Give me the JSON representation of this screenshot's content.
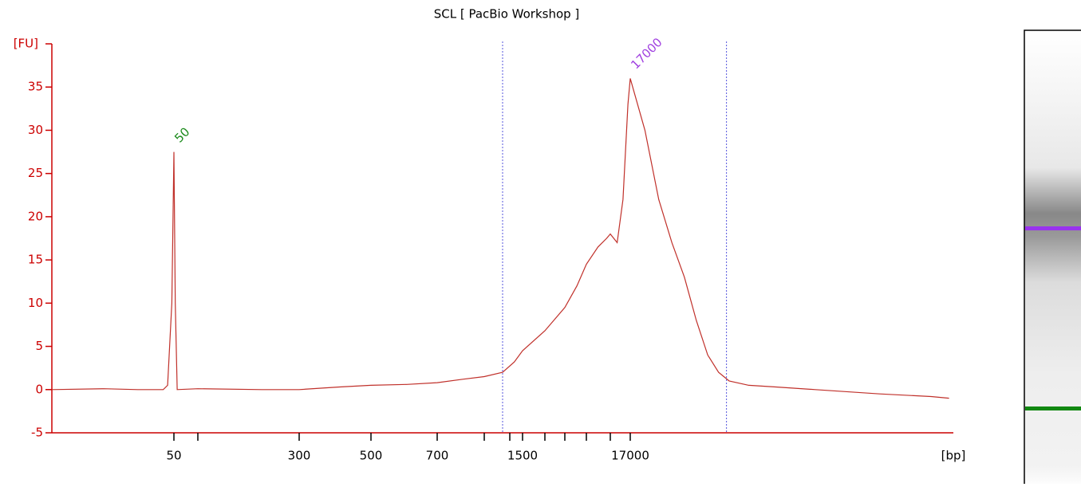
{
  "chart_data": {
    "type": "line",
    "title": "SCL  [ PacBio Workshop ]",
    "y_label": "[FU]",
    "x_label": "[bp]",
    "x": [
      15,
      25,
      35,
      45,
      47,
      49,
      50,
      52,
      55,
      100,
      200,
      300,
      400,
      500,
      600,
      700,
      850,
      1000,
      1140,
      1300,
      1500,
      2000,
      3000,
      4000,
      5000,
      7000,
      9000,
      10000,
      12000,
      14000,
      16000,
      17000,
      18000,
      19000,
      20000,
      21000,
      22000,
      23000,
      24000,
      25000,
      27000,
      30000,
      35000,
      45000,
      55000,
      59000
    ],
    "series": [
      {
        "name": "SCL",
        "color": "#c0302a",
        "values": [
          0,
          0.1,
          0,
          0,
          0.5,
          10,
          27.5,
          10,
          0,
          0.1,
          0,
          0,
          0.3,
          0.5,
          0.6,
          0.8,
          1.2,
          1.5,
          2,
          3.2,
          4.5,
          6.8,
          9.5,
          12,
          14.5,
          16.5,
          17.5,
          18,
          17,
          22,
          33,
          36,
          30,
          22,
          17,
          13,
          8,
          4,
          2,
          1,
          0.5,
          0.3,
          0,
          -0.5,
          -0.8,
          -1
        ]
      }
    ],
    "annotations": [
      {
        "text": "50",
        "x": 50,
        "y": 27.5,
        "color": "#1a8a1a"
      },
      {
        "text": "17000",
        "x": 17000,
        "y": 36,
        "color": "#a040e0"
      }
    ],
    "region_bounds": [
      1140,
      24750
    ],
    "xlim": [
      15,
      60000
    ],
    "xticks": [
      50,
      {
        "value": 100,
        "label": null
      },
      300,
      500,
      700,
      {
        "value": 1000,
        "label": null
      },
      {
        "value": 1200,
        "label": null
      },
      1500,
      {
        "value": 2000,
        "label": null
      },
      {
        "value": 3000,
        "label": null
      },
      {
        "value": 5000,
        "label": null
      },
      {
        "value": 10000,
        "label": null
      },
      17000
    ],
    "ylim": [
      -5,
      40
    ],
    "yticks": [
      -5,
      0,
      5,
      10,
      15,
      20,
      25,
      30,
      35
    ],
    "axis_color": "#cc0000"
  }
}
